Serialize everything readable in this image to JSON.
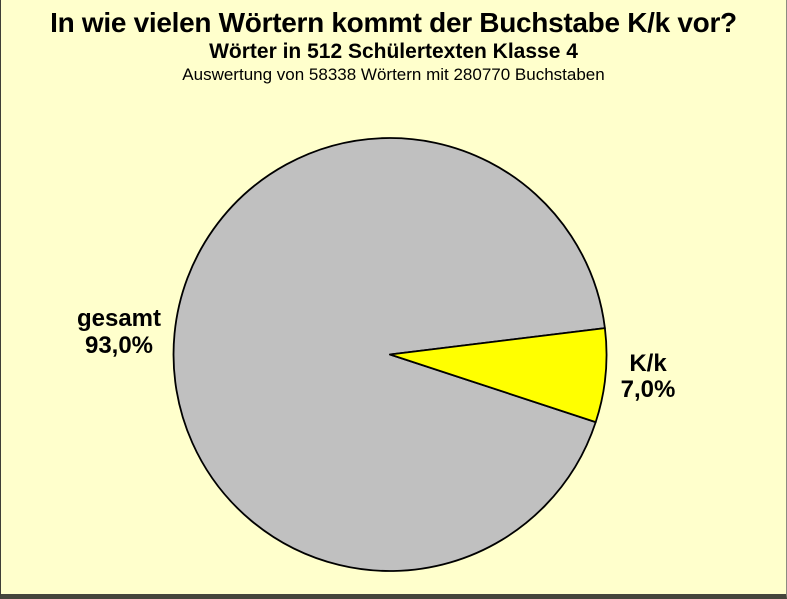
{
  "chart_data": {
    "type": "pie",
    "title": "In wie vielen Wörtern kommt der Buchstabe K/k vor?",
    "subtitle": "Wörter in 512 Schülertexten Klasse 4",
    "note": "Auswertung von 58338 Wörtern mit 280770 Buchstaben",
    "slices": [
      {
        "name": "gesamt",
        "value": 93.0,
        "pct_label": "93,0%",
        "color": "#c0c0c0"
      },
      {
        "name": "K/k",
        "value": 7.0,
        "pct_label": "7,0%",
        "color": "#ffff00"
      }
    ],
    "stroke_color": "#000000",
    "background_color": "#ffffcc",
    "rotation_deg": 18.2,
    "legend": "none",
    "labels_position": "outside"
  }
}
